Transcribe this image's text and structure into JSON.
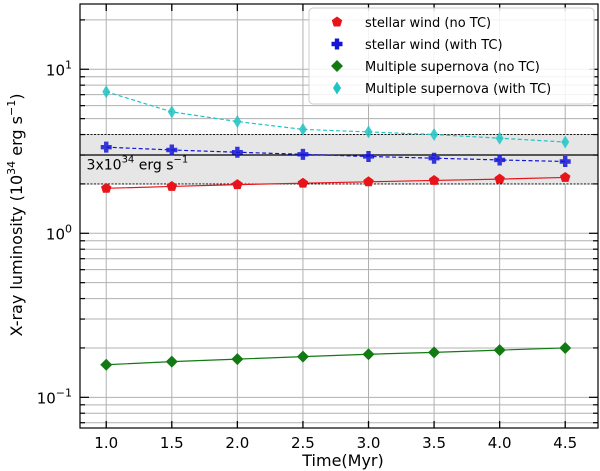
{
  "chart_data": {
    "type": "scatter",
    "xlabel": "Time(Myr)",
    "ylabel": "X-ray luminosity (10^34 erg s^-1)",
    "x_scale": "linear",
    "y_scale": "log",
    "xlim": [
      0.8,
      4.75
    ],
    "ylim": [
      0.065,
      25
    ],
    "grid": true,
    "legend_position": "top-right",
    "x": [
      1.0,
      1.5,
      2.0,
      2.5,
      3.0,
      3.5,
      4.0,
      4.5
    ],
    "x_ticks": [
      "1.0",
      "1.5",
      "2.0",
      "2.5",
      "3.0",
      "3.5",
      "4.0",
      "4.5"
    ],
    "y_ticks": [
      {
        "value": 0.1,
        "base": "10",
        "exp": "−1"
      },
      {
        "value": 1,
        "base": "10",
        "exp": "0"
      },
      {
        "value": 10,
        "base": "10",
        "exp": "1"
      }
    ],
    "series": [
      {
        "name": "stellar wind (no TC)",
        "marker": "pentagon",
        "color": "#e8141a",
        "linestyle": "solid",
        "values": [
          1.88,
          1.93,
          1.98,
          2.02,
          2.06,
          2.1,
          2.14,
          2.19
        ]
      },
      {
        "name": "stellar wind (with TC)",
        "marker": "plus",
        "color": "#1414d8",
        "linestyle": "dashed",
        "values": [
          3.35,
          3.22,
          3.12,
          3.03,
          2.94,
          2.87,
          2.8,
          2.74
        ]
      },
      {
        "name": "Multiple supernova (no TC)",
        "marker": "diamond",
        "color": "#127a12",
        "linestyle": "solid",
        "values": [
          0.158,
          0.165,
          0.171,
          0.177,
          0.183,
          0.188,
          0.194,
          0.2
        ]
      },
      {
        "name": "Multiple supernova (with TC)",
        "marker": "thin-diamond",
        "color": "#1fc4c4",
        "linestyle": "dashed",
        "values": [
          7.3,
          5.5,
          4.8,
          4.3,
          4.15,
          4.0,
          3.8,
          3.6
        ]
      }
    ],
    "band": {
      "y_low": 2,
      "y_high": 4,
      "y_center": 3,
      "color": "#e6e6e6"
    },
    "annotation": {
      "text_base": "3x10",
      "text_exp": "34",
      "text_unit": " erg s",
      "text_unit_exp": "−1",
      "x": 0.85,
      "y": 2.45
    }
  }
}
